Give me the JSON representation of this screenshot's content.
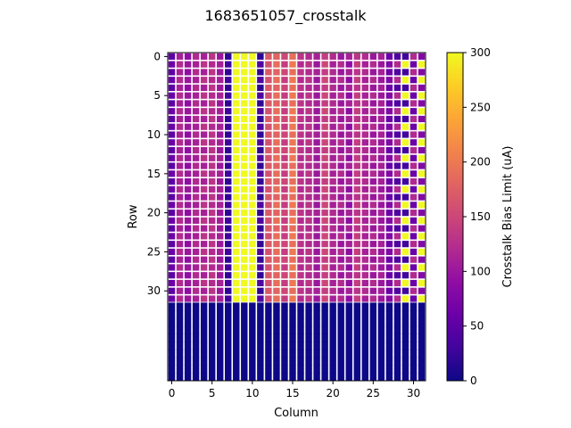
{
  "chart_data": {
    "type": "heatmap",
    "title": "1683651057_crosstalk",
    "xlabel": "Column",
    "ylabel": "Row",
    "colorbar_label": "Crosstalk Bias Limit (uA)",
    "colormap": "plasma",
    "n_columns": 32,
    "n_rows_total": 42,
    "n_rows_measured": 32,
    "filled_rows_value": 0,
    "x_ticks": [
      "0",
      "5",
      "10",
      "15",
      "20",
      "25",
      "30"
    ],
    "y_ticks": [
      "0",
      "5",
      "10",
      "15",
      "20",
      "25",
      "30"
    ],
    "colorbar_ticks": [
      "0",
      "50",
      "100",
      "150",
      "200",
      "250",
      "300"
    ],
    "colorbar_range": [
      0,
      300
    ],
    "column_baseline_values": [
      50,
      110,
      90,
      120,
      110,
      130,
      100,
      20,
      300,
      300,
      300,
      20,
      170,
      180,
      150,
      190,
      130,
      120,
      110,
      140,
      120,
      100,
      110,
      130,
      120,
      100,
      110,
      60,
      40,
      30,
      120,
      80
    ],
    "column_alternate_values": [
      60,
      120,
      100,
      110,
      130,
      120,
      110,
      30,
      300,
      300,
      300,
      40,
      160,
      190,
      140,
      200,
      120,
      130,
      100,
      150,
      110,
      120,
      90,
      140,
      110,
      120,
      100,
      80,
      120,
      300,
      60,
      300
    ],
    "colors": {
      "grid_gap": "#ffffff",
      "background": "#ffffff"
    }
  }
}
